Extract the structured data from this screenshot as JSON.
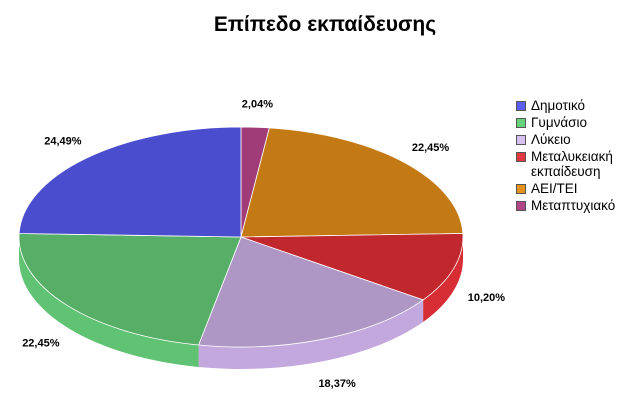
{
  "chart_data": {
    "type": "pie",
    "title": "Επίπεδο εκπαίδευσης",
    "legend_position": "right",
    "three_d": true,
    "slices": [
      {
        "name": "Μεταπτυχιακό",
        "value": 2.04,
        "label": "2,04%",
        "color": "#a03c78"
      },
      {
        "name": "ΑΕΙ/ΤΕΙ",
        "value": 22.45,
        "label": "22,45%",
        "color": "#c47a14"
      },
      {
        "name": "Μεταλυκειακή εκπαίδευση",
        "value": 10.2,
        "label": "10,20%",
        "color": "#c0282e"
      },
      {
        "name": "Λύκειο",
        "value": 18.37,
        "label": "18,37%",
        "color": "#ae96c5"
      },
      {
        "name": "Γυμνάσιο",
        "value": 22.45,
        "label": "22,45%",
        "color": "#56ae67"
      },
      {
        "name": "Δημοτικό",
        "value": 24.49,
        "label": "24,49%",
        "color": "#4b4dcf"
      }
    ]
  },
  "legend": [
    {
      "label": "Δημοτικό",
      "color": "#5a5ef0"
    },
    {
      "label": "Γυμνάσιο",
      "color": "#66d27c"
    },
    {
      "label": "Λύκειο",
      "color": "#d6c0f0"
    },
    {
      "label": "Μεταλυκειακή εκπαίδευση",
      "color": "#e03a40"
    },
    {
      "label": "ΑΕΙ/ΤΕΙ",
      "color": "#e4921c"
    },
    {
      "label": "Μεταπτυχιακό",
      "color": "#b04486"
    }
  ]
}
